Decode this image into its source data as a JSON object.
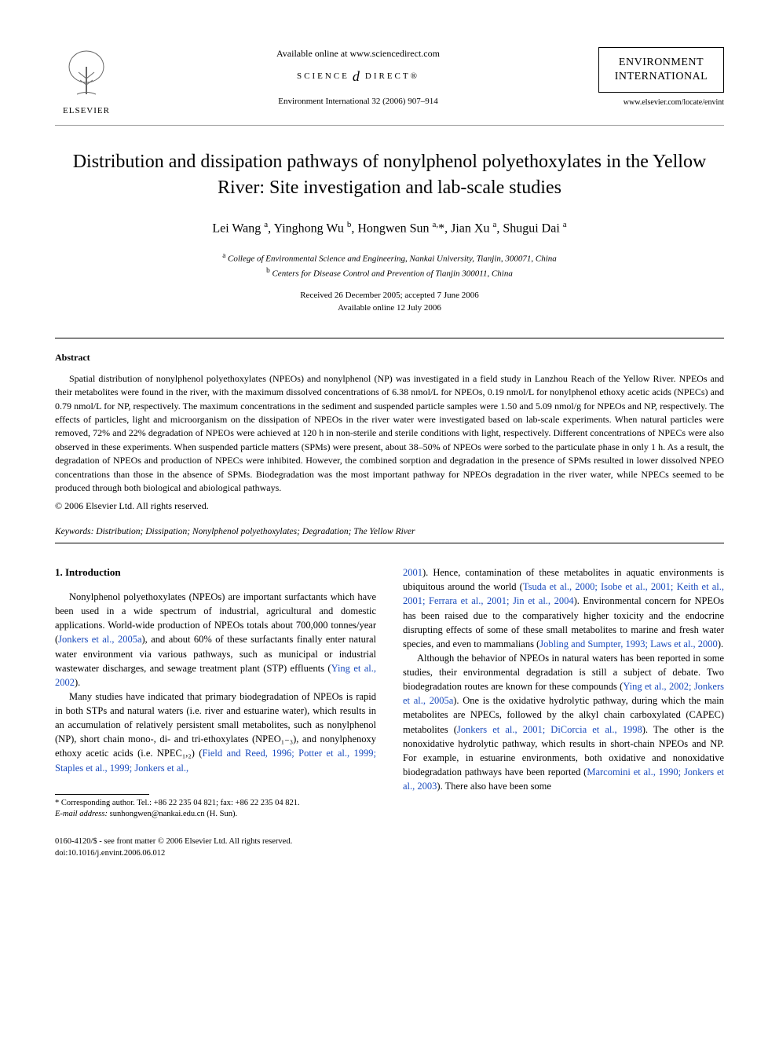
{
  "header": {
    "available_online": "Available online at www.sciencedirect.com",
    "sciencedirect_left": "SCIENCE",
    "sciencedirect_right": "DIRECT®",
    "citation": "Environment International 32 (2006) 907–914",
    "elsevier_label": "ELSEVIER",
    "journal_name_line1": "ENVIRONMENT",
    "journal_name_line2": "INTERNATIONAL",
    "journal_url": "www.elsevier.com/locate/envint"
  },
  "title": "Distribution and dissipation pathways of nonylphenol polyethoxylates in the Yellow River: Site investigation and lab-scale studies",
  "authors_html": "Lei Wang <sup>a</sup>, Yinghong Wu <sup>b</sup>, Hongwen Sun <sup>a,</sup>*, Jian Xu <sup>a</sup>, Shugui Dai <sup>a</sup>",
  "affiliations": {
    "a": "College of Environmental Science and Engineering, Nankai University, Tianjin, 300071, China",
    "b": "Centers for Disease Control and Prevention of Tianjin 300011, China"
  },
  "dates": {
    "received_accepted": "Received 26 December 2005; accepted 7 June 2006",
    "online": "Available online 12 July 2006"
  },
  "abstract": {
    "heading": "Abstract",
    "body": "Spatial distribution of nonylphenol polyethoxylates (NPEOs) and nonylphenol (NP) was investigated in a field study in Lanzhou Reach of the Yellow River. NPEOs and their metabolites were found in the river, with the maximum dissolved concentrations of 6.38 nmol/L for NPEOs, 0.19 nmol/L for nonylphenol ethoxy acetic acids (NPECs) and 0.79 nmol/L for NP, respectively. The maximum concentrations in the sediment and suspended particle samples were 1.50 and 5.09 nmol/g for NPEOs and NP, respectively. The effects of particles, light and microorganism on the dissipation of NPEOs in the river water were investigated based on lab-scale experiments. When natural particles were removed, 72% and 22% degradation of NPEOs were achieved at 120 h in non-sterile and sterile conditions with light, respectively. Different concentrations of NPECs were also observed in these experiments. When suspended particle matters (SPMs) were present, about 38–50% of NPEOs were sorbed to the particulate phase in only 1 h. As a result, the degradation of NPEOs and production of NPECs were inhibited. However, the combined sorption and degradation in the presence of SPMs resulted in lower dissolved NPEO concentrations than those in the absence of SPMs. Biodegradation was the most important pathway for NPEOs degradation in the river water, while NPECs seemed to be produced through both biological and abiological pathways.",
    "copyright": "© 2006 Elsevier Ltd. All rights reserved."
  },
  "keywords": {
    "label": "Keywords:",
    "list": "Distribution; Dissipation; Nonylphenol polyethoxylates; Degradation; The Yellow River"
  },
  "section1": {
    "heading": "1. Introduction",
    "left_p1_a": "Nonylphenol polyethoxylates (NPEOs) are important surfactants which have been used in a wide spectrum of industrial, agricultural and domestic applications. World-wide production of NPEOs totals about 700,000 tonnes/year (",
    "left_p1_ref1": "Jonkers et al., 2005a",
    "left_p1_b": "), and about 60% of these surfactants finally enter natural water environment via various pathways, such as municipal or industrial wastewater discharges, and sewage treatment plant (STP) effluents (",
    "left_p1_ref2": "Ying et al., 2002",
    "left_p1_c": ").",
    "left_p2_a": "Many studies have indicated that primary biodegradation of NPEOs is rapid in both STPs and natural waters (i.e. river and estuarine water), which results in an accumulation of relatively persistent small metabolites, such as nonylphenol (NP), short chain mono-, di- and tri-ethoxylates (NPEO₁₋₃), and nonylphenoxy ethoxy acetic acids (i.e. NPEC₁,₂) (",
    "left_p2_ref1": "Field and Reed, 1996; Potter et al., 1999; Staples et al., 1999; Jonkers et al.,",
    "right_p1_ref1": "2001",
    "right_p1_a": "). Hence, contamination of these metabolites in aquatic environments is ubiquitous around the world (",
    "right_p1_ref2": "Tsuda et al., 2000; Isobe et al., 2001; Keith et al., 2001; Ferrara et al., 2001; Jin et al., 2004",
    "right_p1_b": "). Environmental concern for NPEOs has been raised due to the comparatively higher toxicity and the endocrine disrupting effects of some of these small metabolites to marine and fresh water species, and even to mammalians (",
    "right_p1_ref3": "Jobling and Sumpter, 1993; Laws et al., 2000",
    "right_p1_c": ").",
    "right_p2_a": "Although the behavior of NPEOs in natural waters has been reported in some studies, their environmental degradation is still a subject of debate. Two biodegradation routes are known for these compounds (",
    "right_p2_ref1": "Ying et al., 2002; Jonkers et al., 2005a",
    "right_p2_b": "). One is the oxidative hydrolytic pathway, during which the main metabolites are NPECs, followed by the alkyl chain carboxylated (CAPEC) metabolites (",
    "right_p2_ref2": "Jonkers et al., 2001; DiCorcia et al., 1998",
    "right_p2_c": "). The other is the nonoxidative hydrolytic pathway, which results in short-chain NPEOs and NP. For example, in estuarine environments, both oxidative and nonoxidative biodegradation pathways have been reported (",
    "right_p2_ref3": "Marcomini et al., 1990; Jonkers et al., 2003",
    "right_p2_d": "). There also have been some"
  },
  "footnote": {
    "corresponding": "* Corresponding author. Tel.: +86 22 235 04 821; fax: +86 22 235 04 821.",
    "email_label": "E-mail address:",
    "email": "sunhongwen@nankai.edu.cn",
    "email_suffix": "(H. Sun)."
  },
  "bottom": {
    "line1": "0160-4120/$ - see front matter © 2006 Elsevier Ltd. All rights reserved.",
    "line2": "doi:10.1016/j.envint.2006.06.012"
  },
  "colors": {
    "link": "#1a4bbd",
    "text": "#000000",
    "background": "#ffffff",
    "rule": "#000000"
  }
}
